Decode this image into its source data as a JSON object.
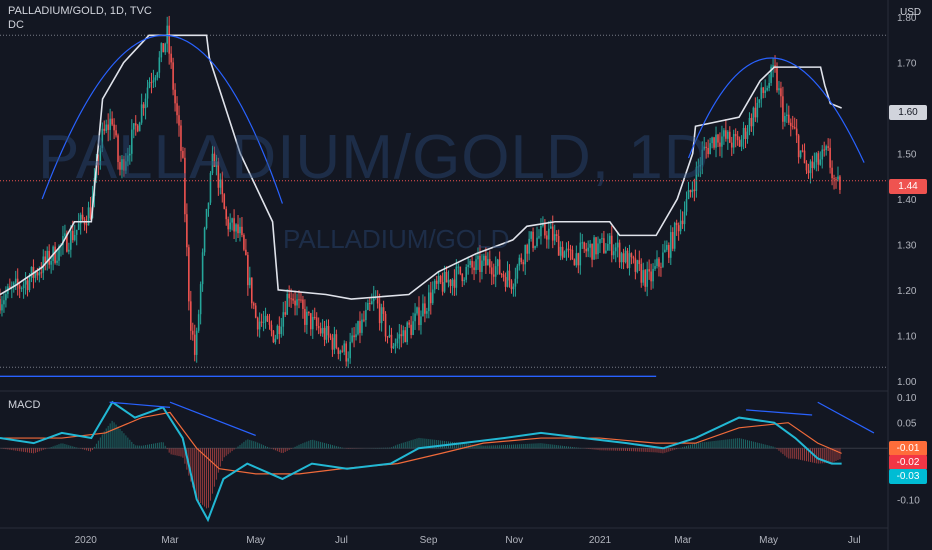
{
  "header": {
    "symbol_line": "PALLADIUM/GOLD, 1D, TVC",
    "indicator": "DC",
    "currency": "USD"
  },
  "watermark": {
    "main": "PALLADIUM/GOLD, 1D",
    "sub": "PALLADIUM/GOLD"
  },
  "macd_label": "MACD",
  "last_price": {
    "value": "1.44",
    "color": "#ef5350"
  },
  "dc_upper_tag": {
    "value": "1.60",
    "color": "#d1d4dc"
  },
  "macd_tags": [
    {
      "value": "-0.01",
      "color": "#ff6d3a"
    },
    {
      "value": "-0.02",
      "color": "#f23645"
    },
    {
      "value": "-0.03",
      "color": "#00bcd4"
    }
  ],
  "colors": {
    "up": "#26a69a",
    "down": "#ef5350",
    "donchian": "#e0e3eb",
    "trendline": "#2962ff",
    "macd_line": "#22b8d4",
    "signal_line": "#f06a3a"
  },
  "chart_data": [
    {
      "type": "candlestick",
      "title": "PALLADIUM/GOLD, 1D, TVC",
      "ylim": [
        0.98,
        1.82
      ],
      "yticks": [
        "1.00",
        "1.10",
        "1.20",
        "1.30",
        "1.40",
        "1.50",
        "1.60",
        "1.70",
        "1.80"
      ],
      "x_labels": [
        "2020",
        "Mar",
        "May",
        "Jul",
        "Sep",
        "Nov",
        "2021",
        "Mar",
        "May",
        "Jul"
      ],
      "x_range": [
        "2019-11-01",
        "2021-07-25"
      ],
      "close_series": [
        [
          "2019-11-01",
          1.18
        ],
        [
          "2019-11-20",
          1.22
        ],
        [
          "2019-12-10",
          1.28
        ],
        [
          "2019-12-25",
          1.33
        ],
        [
          "2020-01-05",
          1.38
        ],
        [
          "2020-01-12",
          1.53
        ],
        [
          "2020-01-20",
          1.58
        ],
        [
          "2020-01-25",
          1.46
        ],
        [
          "2020-02-05",
          1.55
        ],
        [
          "2020-02-15",
          1.66
        ],
        [
          "2020-02-22",
          1.7
        ],
        [
          "2020-02-28",
          1.76
        ],
        [
          "2020-03-05",
          1.6
        ],
        [
          "2020-03-10",
          1.48
        ],
        [
          "2020-03-15",
          1.15
        ],
        [
          "2020-03-19",
          1.05
        ],
        [
          "2020-03-25",
          1.3
        ],
        [
          "2020-04-01",
          1.5
        ],
        [
          "2020-04-10",
          1.35
        ],
        [
          "2020-04-20",
          1.32
        ],
        [
          "2020-05-01",
          1.14
        ],
        [
          "2020-05-15",
          1.1
        ],
        [
          "2020-05-25",
          1.2
        ],
        [
          "2020-06-05",
          1.14
        ],
        [
          "2020-06-20",
          1.1
        ],
        [
          "2020-07-05",
          1.06
        ],
        [
          "2020-07-15",
          1.12
        ],
        [
          "2020-07-25",
          1.18
        ],
        [
          "2020-08-05",
          1.08
        ],
        [
          "2020-08-20",
          1.12
        ],
        [
          "2020-09-05",
          1.2
        ],
        [
          "2020-09-25",
          1.24
        ],
        [
          "2020-10-15",
          1.26
        ],
        [
          "2020-10-30",
          1.22
        ],
        [
          "2020-11-10",
          1.3
        ],
        [
          "2020-11-25",
          1.33
        ],
        [
          "2020-12-10",
          1.27
        ],
        [
          "2020-12-25",
          1.29
        ],
        [
          "2021-01-10",
          1.3
        ],
        [
          "2021-01-25",
          1.25
        ],
        [
          "2021-02-05",
          1.22
        ],
        [
          "2021-02-20",
          1.3
        ],
        [
          "2021-03-05",
          1.4
        ],
        [
          "2021-03-15",
          1.5
        ],
        [
          "2021-03-25",
          1.54
        ],
        [
          "2021-04-10",
          1.52
        ],
        [
          "2021-04-25",
          1.62
        ],
        [
          "2021-05-05",
          1.68
        ],
        [
          "2021-05-12",
          1.58
        ],
        [
          "2021-05-20",
          1.54
        ],
        [
          "2021-05-28",
          1.46
        ],
        [
          "2021-06-05",
          1.48
        ],
        [
          "2021-06-12",
          1.5
        ],
        [
          "2021-06-18",
          1.42
        ],
        [
          "2021-06-22",
          1.44
        ]
      ],
      "donchian_upper_steps": [
        [
          "2019-11-01",
          1.19
        ],
        [
          "2019-11-12",
          1.21
        ],
        [
          "2019-12-01",
          1.25
        ],
        [
          "2019-12-15",
          1.3
        ],
        [
          "2019-12-24",
          1.35
        ],
        [
          "2020-01-05",
          1.35
        ],
        [
          "2020-01-13",
          1.62
        ],
        [
          "2020-01-28",
          1.7
        ],
        [
          "2020-02-15",
          1.76
        ],
        [
          "2020-03-27",
          1.76
        ],
        [
          "2020-03-29",
          1.71
        ],
        [
          "2020-04-20",
          1.5
        ],
        [
          "2020-05-13",
          1.35
        ],
        [
          "2020-05-17",
          1.2
        ],
        [
          "2020-06-20",
          1.19
        ],
        [
          "2020-07-08",
          1.18
        ],
        [
          "2020-08-18",
          1.19
        ],
        [
          "2020-09-08",
          1.24
        ],
        [
          "2020-10-05",
          1.28
        ],
        [
          "2020-10-31",
          1.31
        ],
        [
          "2020-11-10",
          1.34
        ],
        [
          "2020-11-30",
          1.35
        ],
        [
          "2021-01-08",
          1.35
        ],
        [
          "2021-01-15",
          1.32
        ],
        [
          "2021-02-10",
          1.32
        ],
        [
          "2021-02-25",
          1.4
        ],
        [
          "2021-03-08",
          1.5
        ],
        [
          "2021-03-10",
          1.56
        ],
        [
          "2021-04-10",
          1.58
        ],
        [
          "2021-04-25",
          1.66
        ],
        [
          "2021-05-05",
          1.69
        ],
        [
          "2021-06-07",
          1.69
        ],
        [
          "2021-06-10",
          1.65
        ],
        [
          "2021-06-14",
          1.61
        ],
        [
          "2021-06-22",
          1.6
        ]
      ],
      "donchian_lower": 1.03,
      "horizontal_level": 1.01,
      "resistance_level": 1.76,
      "arcs": [
        {
          "from": [
            "2019-12-01",
            1.4
          ],
          "peak": [
            "2020-02-28",
            1.76
          ],
          "to": [
            "2020-05-20",
            1.39
          ]
        },
        {
          "from": [
            "2021-03-05",
            1.49
          ],
          "peak": [
            "2021-05-01",
            1.71
          ],
          "to": [
            "2021-07-08",
            1.48
          ]
        }
      ]
    },
    {
      "type": "line",
      "title": "MACD",
      "ylim": [
        -0.15,
        0.11
      ],
      "yticks": [
        "0.10",
        "0.05",
        "-0.10"
      ],
      "series": [
        {
          "points": [
            [
              "2019-11-01",
              0.02
            ],
            [
              "2019-11-25",
              0.01
            ],
            [
              "2019-12-15",
              0.03
            ],
            [
              "2020-01-05",
              0.02
            ],
            [
              "2020-01-20",
              0.09
            ],
            [
              "2020-02-05",
              0.06
            ],
            [
              "2020-02-25",
              0.08
            ],
            [
              "2020-03-10",
              0.02
            ],
            [
              "2020-03-20",
              -0.1
            ],
            [
              "2020-03-28",
              -0.14
            ],
            [
              "2020-04-08",
              -0.06
            ],
            [
              "2020-04-25",
              -0.03
            ],
            [
              "2020-05-20",
              -0.06
            ],
            [
              "2020-06-10",
              -0.03
            ],
            [
              "2020-07-05",
              -0.04
            ],
            [
              "2020-08-05",
              -0.03
            ],
            [
              "2020-08-25",
              -0.0
            ],
            [
              "2020-09-25",
              0.01
            ],
            [
              "2020-10-25",
              0.02
            ],
            [
              "2020-11-20",
              0.03
            ],
            [
              "2020-12-20",
              0.02
            ],
            [
              "2021-01-20",
              0.01
            ],
            [
              "2021-02-15",
              -0.0
            ],
            [
              "2021-03-10",
              0.02
            ],
            [
              "2021-04-10",
              0.06
            ],
            [
              "2021-05-05",
              0.05
            ],
            [
              "2021-05-20",
              0.02
            ],
            [
              "2021-06-05",
              -0.02
            ],
            [
              "2021-06-15",
              -0.03
            ],
            [
              "2021-06-22",
              -0.03
            ]
          ]
        },
        {
          "points": [
            [
              "2019-11-01",
              0.02
            ],
            [
              "2019-12-15",
              0.02
            ],
            [
              "2020-01-15",
              0.03
            ],
            [
              "2020-02-10",
              0.06
            ],
            [
              "2020-03-01",
              0.07
            ],
            [
              "2020-03-20",
              0.0
            ],
            [
              "2020-04-05",
              -0.04
            ],
            [
              "2020-05-01",
              -0.05
            ],
            [
              "2020-06-01",
              -0.05
            ],
            [
              "2020-07-01",
              -0.04
            ],
            [
              "2020-08-10",
              -0.03
            ],
            [
              "2020-09-10",
              -0.01
            ],
            [
              "2020-10-10",
              0.01
            ],
            [
              "2020-11-20",
              0.02
            ],
            [
              "2021-01-01",
              0.02
            ],
            [
              "2021-02-10",
              0.01
            ],
            [
              "2021-03-10",
              0.01
            ],
            [
              "2021-04-10",
              0.04
            ],
            [
              "2021-05-15",
              0.05
            ],
            [
              "2021-06-05",
              0.01
            ],
            [
              "2021-06-22",
              -0.01
            ]
          ]
        }
      ]
    }
  ]
}
